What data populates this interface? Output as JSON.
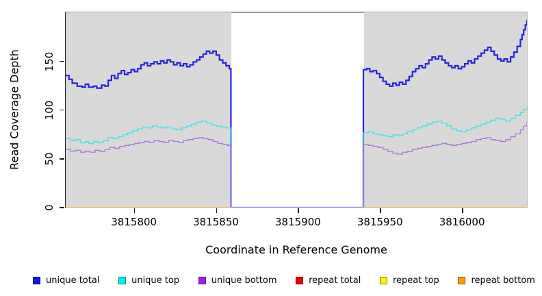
{
  "chart_data": {
    "type": "line",
    "step_interpolation": true,
    "title": "",
    "xlabel": "Coordinate in Reference Genome",
    "ylabel": "Read Coverage Depth",
    "xlim": [
      3815758,
      3816040
    ],
    "ylim": [
      0,
      201
    ],
    "x_ticks": [
      3815800,
      3815850,
      3815900,
      3815950,
      3816000
    ],
    "y_ticks": [
      0,
      50,
      100,
      150
    ],
    "grid": false,
    "plot_background": "#d9d9d9",
    "page_background": "#ffffff",
    "gap_region": {
      "x_start": 3815859,
      "x_end": 3815940,
      "fill": "#ffffff"
    },
    "legend_position": "bottom",
    "series": [
      {
        "name": "unique total",
        "color": "#2323dc",
        "width": 2.2,
        "points": [
          [
            3815758,
            136
          ],
          [
            3815760,
            132
          ],
          [
            3815762,
            128
          ],
          [
            3815765,
            125
          ],
          [
            3815768,
            124
          ],
          [
            3815770,
            127
          ],
          [
            3815772,
            124
          ],
          [
            3815775,
            125
          ],
          [
            3815777,
            123
          ],
          [
            3815780,
            126
          ],
          [
            3815782,
            125
          ],
          [
            3815784,
            131
          ],
          [
            3815786,
            136
          ],
          [
            3815788,
            133
          ],
          [
            3815790,
            138
          ],
          [
            3815792,
            141
          ],
          [
            3815794,
            137
          ],
          [
            3815796,
            139
          ],
          [
            3815798,
            142
          ],
          [
            3815800,
            140
          ],
          [
            3815802,
            143
          ],
          [
            3815804,
            147
          ],
          [
            3815806,
            149
          ],
          [
            3815808,
            146
          ],
          [
            3815810,
            148
          ],
          [
            3815812,
            150
          ],
          [
            3815814,
            148
          ],
          [
            3815816,
            151
          ],
          [
            3815818,
            149
          ],
          [
            3815820,
            152
          ],
          [
            3815822,
            150
          ],
          [
            3815824,
            147
          ],
          [
            3815826,
            149
          ],
          [
            3815828,
            146
          ],
          [
            3815830,
            148
          ],
          [
            3815832,
            145
          ],
          [
            3815834,
            147
          ],
          [
            3815836,
            150
          ],
          [
            3815838,
            152
          ],
          [
            3815840,
            155
          ],
          [
            3815842,
            158
          ],
          [
            3815844,
            161
          ],
          [
            3815846,
            159
          ],
          [
            3815848,
            161
          ],
          [
            3815850,
            157
          ],
          [
            3815852,
            152
          ],
          [
            3815854,
            149
          ],
          [
            3815856,
            146
          ],
          [
            3815858,
            143
          ],
          [
            3815859,
            0
          ],
          [
            3815940,
            142
          ],
          [
            3815942,
            143
          ],
          [
            3815944,
            140
          ],
          [
            3815946,
            141
          ],
          [
            3815948,
            138
          ],
          [
            3815950,
            134
          ],
          [
            3815952,
            130
          ],
          [
            3815954,
            127
          ],
          [
            3815956,
            125
          ],
          [
            3815958,
            128
          ],
          [
            3815960,
            126
          ],
          [
            3815962,
            129
          ],
          [
            3815964,
            127
          ],
          [
            3815966,
            131
          ],
          [
            3815968,
            135
          ],
          [
            3815970,
            140
          ],
          [
            3815972,
            143
          ],
          [
            3815974,
            146
          ],
          [
            3815976,
            144
          ],
          [
            3815978,
            148
          ],
          [
            3815980,
            152
          ],
          [
            3815982,
            155
          ],
          [
            3815984,
            153
          ],
          [
            3815986,
            156
          ],
          [
            3815988,
            152
          ],
          [
            3815990,
            149
          ],
          [
            3815992,
            146
          ],
          [
            3815994,
            144
          ],
          [
            3815996,
            146
          ],
          [
            3815998,
            143
          ],
          [
            3816000,
            145
          ],
          [
            3816002,
            148
          ],
          [
            3816004,
            151
          ],
          [
            3816006,
            149
          ],
          [
            3816008,
            153
          ],
          [
            3816010,
            156
          ],
          [
            3816012,
            159
          ],
          [
            3816014,
            162
          ],
          [
            3816016,
            165
          ],
          [
            3816018,
            161
          ],
          [
            3816020,
            157
          ],
          [
            3816022,
            153
          ],
          [
            3816024,
            151
          ],
          [
            3816026,
            153
          ],
          [
            3816028,
            150
          ],
          [
            3816030,
            155
          ],
          [
            3816032,
            160
          ],
          [
            3816034,
            166
          ],
          [
            3816036,
            173
          ],
          [
            3816037,
            178
          ],
          [
            3816038,
            183
          ],
          [
            3816039,
            188
          ],
          [
            3816040,
            193
          ]
        ]
      },
      {
        "name": "unique top",
        "color": "#3ce6e6",
        "width": 1.4,
        "points": [
          [
            3815758,
            71
          ],
          [
            3815761,
            69
          ],
          [
            3815764,
            70
          ],
          [
            3815767,
            67
          ],
          [
            3815770,
            68
          ],
          [
            3815772,
            66
          ],
          [
            3815775,
            68
          ],
          [
            3815778,
            67
          ],
          [
            3815781,
            69
          ],
          [
            3815784,
            72
          ],
          [
            3815787,
            71
          ],
          [
            3815790,
            73
          ],
          [
            3815793,
            75
          ],
          [
            3815796,
            77
          ],
          [
            3815799,
            79
          ],
          [
            3815802,
            81
          ],
          [
            3815805,
            83
          ],
          [
            3815808,
            82
          ],
          [
            3815811,
            84
          ],
          [
            3815814,
            83
          ],
          [
            3815817,
            82
          ],
          [
            3815820,
            83
          ],
          [
            3815823,
            81
          ],
          [
            3815826,
            80
          ],
          [
            3815829,
            82
          ],
          [
            3815832,
            84
          ],
          [
            3815835,
            86
          ],
          [
            3815838,
            88
          ],
          [
            3815841,
            89
          ],
          [
            3815844,
            87
          ],
          [
            3815847,
            85
          ],
          [
            3815850,
            84
          ],
          [
            3815853,
            83
          ],
          [
            3815856,
            82
          ],
          [
            3815859,
            0
          ],
          [
            3815940,
            77
          ],
          [
            3815943,
            78
          ],
          [
            3815946,
            76
          ],
          [
            3815949,
            75
          ],
          [
            3815952,
            74
          ],
          [
            3815955,
            73
          ],
          [
            3815958,
            75
          ],
          [
            3815961,
            74
          ],
          [
            3815964,
            76
          ],
          [
            3815967,
            78
          ],
          [
            3815970,
            80
          ],
          [
            3815973,
            82
          ],
          [
            3815976,
            84
          ],
          [
            3815979,
            86
          ],
          [
            3815982,
            88
          ],
          [
            3815985,
            89
          ],
          [
            3815988,
            87
          ],
          [
            3815991,
            84
          ],
          [
            3815994,
            81
          ],
          [
            3815997,
            79
          ],
          [
            3816000,
            78
          ],
          [
            3816003,
            80
          ],
          [
            3816006,
            82
          ],
          [
            3816009,
            84
          ],
          [
            3816012,
            86
          ],
          [
            3816015,
            88
          ],
          [
            3816018,
            90
          ],
          [
            3816021,
            92
          ],
          [
            3816024,
            91
          ],
          [
            3816027,
            89
          ],
          [
            3816030,
            92
          ],
          [
            3816033,
            95
          ],
          [
            3816036,
            98
          ],
          [
            3816038,
            101
          ],
          [
            3816040,
            104
          ]
        ]
      },
      {
        "name": "unique bottom",
        "color": "#aa7ade",
        "width": 1.4,
        "points": [
          [
            3815758,
            60
          ],
          [
            3815761,
            58
          ],
          [
            3815764,
            59
          ],
          [
            3815767,
            57
          ],
          [
            3815770,
            58
          ],
          [
            3815773,
            57
          ],
          [
            3815776,
            59
          ],
          [
            3815779,
            58
          ],
          [
            3815782,
            60
          ],
          [
            3815785,
            62
          ],
          [
            3815788,
            61
          ],
          [
            3815791,
            63
          ],
          [
            3815794,
            64
          ],
          [
            3815797,
            65
          ],
          [
            3815800,
            66
          ],
          [
            3815803,
            67
          ],
          [
            3815806,
            68
          ],
          [
            3815809,
            67
          ],
          [
            3815812,
            69
          ],
          [
            3815815,
            68
          ],
          [
            3815818,
            67
          ],
          [
            3815821,
            69
          ],
          [
            3815824,
            68
          ],
          [
            3815827,
            67
          ],
          [
            3815830,
            69
          ],
          [
            3815833,
            70
          ],
          [
            3815836,
            71
          ],
          [
            3815839,
            72
          ],
          [
            3815842,
            71
          ],
          [
            3815845,
            70
          ],
          [
            3815848,
            68
          ],
          [
            3815851,
            66
          ],
          [
            3815854,
            65
          ],
          [
            3815857,
            64
          ],
          [
            3815859,
            0
          ],
          [
            3815940,
            65
          ],
          [
            3815943,
            64
          ],
          [
            3815946,
            63
          ],
          [
            3815949,
            62
          ],
          [
            3815952,
            60
          ],
          [
            3815955,
            58
          ],
          [
            3815958,
            56
          ],
          [
            3815961,
            55
          ],
          [
            3815964,
            57
          ],
          [
            3815967,
            58
          ],
          [
            3815970,
            60
          ],
          [
            3815973,
            61
          ],
          [
            3815976,
            62
          ],
          [
            3815979,
            63
          ],
          [
            3815982,
            64
          ],
          [
            3815985,
            65
          ],
          [
            3815988,
            66
          ],
          [
            3815991,
            65
          ],
          [
            3815994,
            64
          ],
          [
            3815997,
            65
          ],
          [
            3816000,
            66
          ],
          [
            3816003,
            67
          ],
          [
            3816006,
            68
          ],
          [
            3816009,
            70
          ],
          [
            3816012,
            71
          ],
          [
            3816015,
            72
          ],
          [
            3816018,
            70
          ],
          [
            3816021,
            69
          ],
          [
            3816024,
            68
          ],
          [
            3816027,
            70
          ],
          [
            3816030,
            73
          ],
          [
            3816033,
            76
          ],
          [
            3816036,
            80
          ],
          [
            3816038,
            84
          ],
          [
            3816040,
            88
          ]
        ]
      },
      {
        "name": "repeat total",
        "color": "#dd1111",
        "width": 1.2,
        "points": [
          [
            3815758,
            0
          ],
          [
            3815859,
            0
          ],
          null,
          [
            3815940,
            0
          ],
          [
            3816040,
            0
          ]
        ]
      },
      {
        "name": "repeat top",
        "color": "#f2f215",
        "width": 1.2,
        "points": [
          [
            3815758,
            0
          ],
          [
            3815859,
            0
          ],
          null,
          [
            3815940,
            0
          ],
          [
            3816040,
            0
          ]
        ]
      },
      {
        "name": "repeat bottom",
        "color": "#ff9d1e",
        "width": 1.8,
        "points": [
          [
            3815758,
            0
          ],
          [
            3815859,
            0
          ],
          null,
          [
            3815940,
            0
          ],
          [
            3816040,
            0
          ]
        ]
      }
    ],
    "legend": [
      {
        "label": "unique total",
        "fill": "#1414ee",
        "border": "#00008b"
      },
      {
        "label": "unique top",
        "fill": "#00f2f2",
        "border": "#008b8b"
      },
      {
        "label": "unique bottom",
        "fill": "#a020f0",
        "border": "#551a8b"
      },
      {
        "label": "repeat total",
        "fill": "#ee0000",
        "border": "#8b0000"
      },
      {
        "label": "repeat top",
        "fill": "#f7f700",
        "border": "#8b8b00"
      },
      {
        "label": "repeat bottom",
        "fill": "#ff9d00",
        "border": "#8b5a00"
      }
    ]
  }
}
